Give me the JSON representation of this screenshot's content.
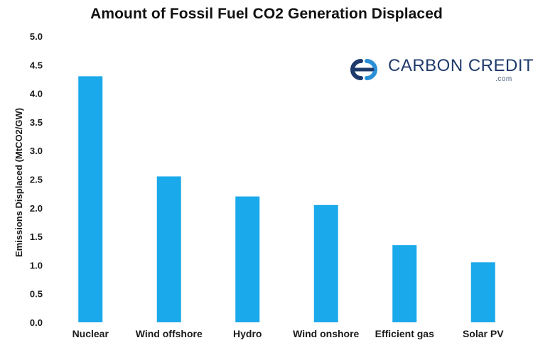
{
  "chart_data": {
    "type": "bar",
    "title": "Amount of Fossil Fuel CO2 Generation Displaced",
    "xlabel": "",
    "ylabel": "Emissions Displaced (MtCO2/GW)",
    "categories": [
      "Nuclear",
      "Wind offshore",
      "Hydro",
      "Wind onshore",
      "Efficient gas",
      "Solar PV"
    ],
    "values": [
      4.3,
      2.55,
      2.2,
      2.05,
      1.35,
      1.05
    ],
    "ylim": [
      0,
      5.0
    ],
    "yticks": [
      "0.0",
      "0.5",
      "1.0",
      "1.5",
      "2.0",
      "2.5",
      "3.0",
      "3.5",
      "4.0",
      "4.5",
      "5.0"
    ],
    "grid": false,
    "legend": "none",
    "bar_color": "#1aa9ea"
  },
  "logo": {
    "name": "CARBON CREDITS",
    "suffix": ".com",
    "icon": "carbon-credits-logo-icon",
    "color": "#1e3a6b",
    "accent_color": "#2a8fd6"
  }
}
